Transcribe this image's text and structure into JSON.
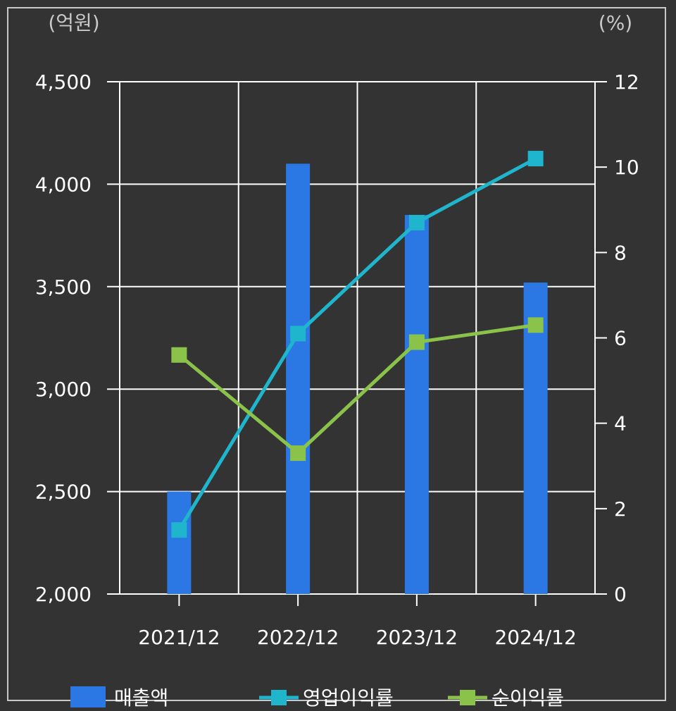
{
  "chart_data": {
    "type": "bar+line",
    "left_unit": "(억원)",
    "right_unit": "(%)",
    "categories": [
      "2021/12",
      "2022/12",
      "2023/12",
      "2024/12"
    ],
    "y_left": {
      "ylim": [
        2000,
        4500
      ],
      "ticks": [
        2000,
        2500,
        3000,
        3500,
        4000,
        4500
      ],
      "tick_labels": [
        "2,000",
        "2,500",
        "3,000",
        "3,500",
        "4,000",
        "4,500"
      ]
    },
    "y_right": {
      "ylim": [
        0,
        12
      ],
      "ticks": [
        0,
        2,
        4,
        6,
        8,
        10,
        12
      ],
      "tick_labels": [
        "0",
        "2",
        "4",
        "6",
        "8",
        "10",
        "12"
      ]
    },
    "grid": true,
    "legend_position": "bottom",
    "series": [
      {
        "name": "매출액",
        "kind": "bar",
        "axis": "left",
        "color": "#2b78e4",
        "values": [
          2500,
          4100,
          3850,
          3520
        ]
      },
      {
        "name": "영업이익률",
        "kind": "line",
        "axis": "right",
        "color": "#1fb5cc",
        "values": [
          1.5,
          6.1,
          8.7,
          10.2
        ]
      },
      {
        "name": "순이익률",
        "kind": "line",
        "axis": "right",
        "color": "#8bc34a",
        "values": [
          5.6,
          3.3,
          5.9,
          6.3
        ]
      }
    ]
  }
}
